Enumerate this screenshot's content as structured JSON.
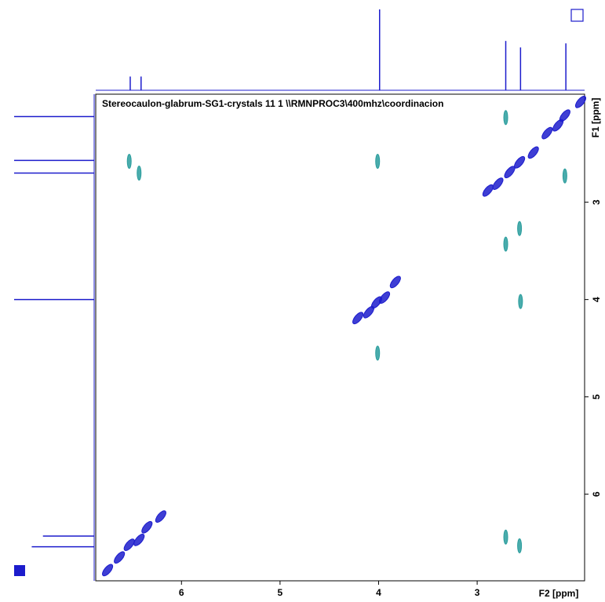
{
  "chart_data": {
    "type": "contour",
    "title": "Stereocaulon-glabrum-SG1-crystals  11  1  \\\\RMNPROC3\\400mhz\\coordinacion",
    "xlabel": "F2 [ppm]",
    "ylabel": "F1 [ppm]",
    "xlim": [
      6.87,
      1.91
    ],
    "ylim": [
      1.89,
      6.89
    ],
    "xticks": [
      6,
      5,
      4,
      3
    ],
    "yticks": [
      3,
      4,
      5,
      6
    ],
    "series": [
      {
        "color": "#1c1ccc",
        "x": [
          6.75,
          6.63,
          6.53,
          6.43,
          6.35,
          6.21,
          4.21,
          4.1,
          4.02,
          3.94,
          3.83,
          2.89,
          2.79,
          2.67,
          2.57,
          2.43,
          2.29,
          2.18,
          2.11,
          1.95
        ],
        "y": [
          6.78,
          6.65,
          6.52,
          6.47,
          6.34,
          6.23,
          4.19,
          4.13,
          4.03,
          3.98,
          3.82,
          2.88,
          2.81,
          2.69,
          2.59,
          2.49,
          2.29,
          2.21,
          2.11,
          1.97
        ]
      },
      {
        "color": "#2a9d9d",
        "x": [
          6.53,
          6.43,
          4.01,
          2.71,
          2.57,
          2.71,
          2.56,
          2.11,
          2.71,
          2.57,
          4.01
        ],
        "y": [
          2.58,
          2.7,
          2.58,
          2.13,
          3.27,
          3.43,
          4.02,
          2.73,
          6.44,
          6.53,
          4.55
        ]
      }
    ],
    "projection_color": "#1c1ccc",
    "top_projection": {
      "x": [
        6.52,
        6.41,
        3.99,
        2.71,
        2.56,
        2.1
      ],
      "values": [
        17,
        17,
        100,
        61,
        53,
        58
      ]
    },
    "left_projection": {
      "y": [
        2.12,
        2.57,
        2.7,
        4.0,
        6.43,
        6.54
      ],
      "values": [
        100,
        100,
        100,
        100,
        64,
        78
      ]
    }
  }
}
